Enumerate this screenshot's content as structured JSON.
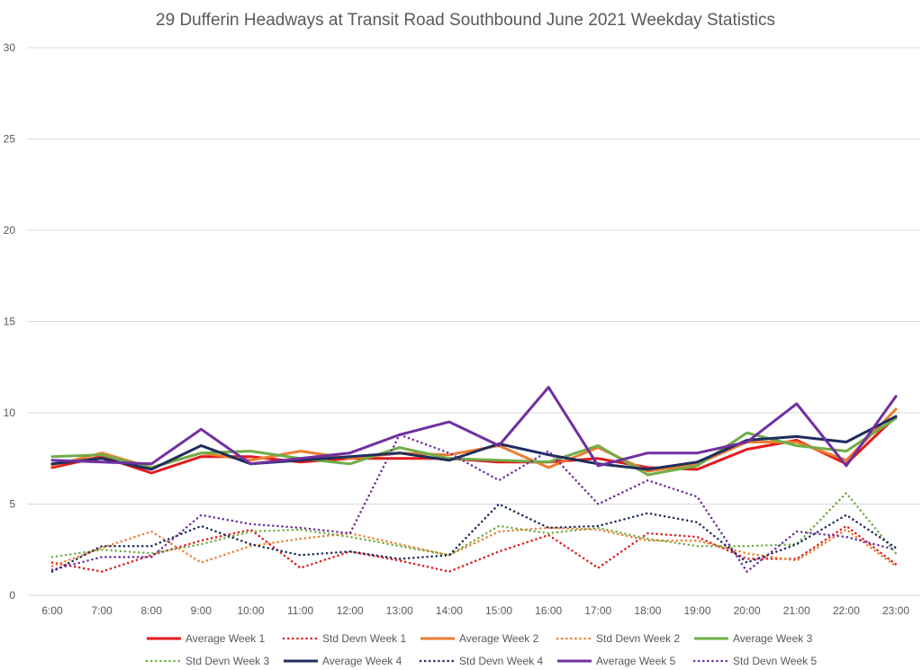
{
  "chart_data": {
    "type": "line",
    "title": "29 Dufferin Headways at Transit Road Southbound June 2021 Weekday Statistics",
    "xlabel": "",
    "ylabel": "",
    "ylim": [
      0,
      30
    ],
    "y_ticks": [
      0,
      5,
      10,
      15,
      20,
      25,
      30
    ],
    "grid": true,
    "legend_position": "bottom",
    "categories": [
      "6:00",
      "7:00",
      "8:00",
      "9:00",
      "10:00",
      "11:00",
      "12:00",
      "13:00",
      "14:00",
      "15:00",
      "16:00",
      "17:00",
      "18:00",
      "19:00",
      "20:00",
      "21:00",
      "22:00",
      "23:00"
    ],
    "series": [
      {
        "name": "Average Week 1",
        "color": "#e31a1c",
        "dash": "solid",
        "values": [
          7.0,
          7.6,
          6.7,
          7.6,
          7.6,
          7.3,
          7.5,
          7.5,
          7.5,
          7.3,
          7.3,
          7.5,
          7.0,
          6.9,
          8.0,
          8.5,
          7.2,
          9.8
        ]
      },
      {
        "name": "Std Devn Week 1",
        "color": "#e31a1c",
        "dash": "dotted",
        "values": [
          1.8,
          1.3,
          2.2,
          3.0,
          3.6,
          1.5,
          2.4,
          1.9,
          1.3,
          2.4,
          3.3,
          1.5,
          3.4,
          3.2,
          2.0,
          2.0,
          3.8,
          1.7
        ]
      },
      {
        "name": "Average Week 2",
        "color": "#ed7d31",
        "dash": "solid",
        "values": [
          7.1,
          7.8,
          7.0,
          7.8,
          7.4,
          7.9,
          7.5,
          7.8,
          7.7,
          8.2,
          7.0,
          8.1,
          6.8,
          7.2,
          8.4,
          8.4,
          7.4,
          10.2
        ]
      },
      {
        "name": "Std Devn Week 2",
        "color": "#ed7d31",
        "dash": "dotted",
        "values": [
          1.6,
          2.6,
          3.5,
          1.8,
          2.7,
          3.1,
          3.4,
          2.8,
          2.2,
          3.5,
          3.7,
          3.6,
          3.0,
          3.0,
          2.3,
          1.9,
          3.6,
          1.6
        ]
      },
      {
        "name": "Average Week 3",
        "color": "#70ad47",
        "dash": "solid",
        "values": [
          7.6,
          7.7,
          7.0,
          7.8,
          7.9,
          7.5,
          7.2,
          8.1,
          7.5,
          7.4,
          7.3,
          8.2,
          6.6,
          7.1,
          8.9,
          8.2,
          7.9,
          9.7
        ]
      },
      {
        "name": "Std Devn Week 3",
        "color": "#70ad47",
        "dash": "dotted",
        "values": [
          2.1,
          2.5,
          2.3,
          2.8,
          3.5,
          3.6,
          3.2,
          2.7,
          2.2,
          3.8,
          3.4,
          3.7,
          3.1,
          2.7,
          2.7,
          2.8,
          5.6,
          2.3
        ]
      },
      {
        "name": "Average Week 4",
        "color": "#1f2d5c",
        "dash": "solid",
        "values": [
          7.2,
          7.5,
          6.9,
          8.2,
          7.2,
          7.4,
          7.6,
          7.8,
          7.4,
          8.3,
          7.7,
          7.2,
          6.9,
          7.3,
          8.5,
          8.7,
          8.4,
          9.8
        ]
      },
      {
        "name": "Std Devn Week 4",
        "color": "#1f2d5c",
        "dash": "dotted",
        "values": [
          1.3,
          2.7,
          2.7,
          3.8,
          2.8,
          2.2,
          2.4,
          2.0,
          2.2,
          5.0,
          3.7,
          3.8,
          4.5,
          4.0,
          1.8,
          2.8,
          4.4,
          2.6
        ]
      },
      {
        "name": "Average Week 5",
        "color": "#7030a0",
        "dash": "solid",
        "values": [
          7.4,
          7.3,
          7.2,
          9.1,
          7.2,
          7.5,
          7.8,
          8.8,
          9.5,
          8.2,
          11.4,
          7.1,
          7.8,
          7.8,
          8.4,
          10.5,
          7.1,
          10.9
        ]
      },
      {
        "name": "Std Devn Week 5",
        "color": "#7030a0",
        "dash": "dotted",
        "values": [
          1.4,
          2.1,
          2.1,
          4.4,
          3.9,
          3.7,
          3.4,
          8.8,
          7.8,
          6.3,
          7.9,
          5.0,
          6.3,
          5.4,
          1.3,
          3.5,
          3.2,
          2.5
        ]
      }
    ]
  }
}
